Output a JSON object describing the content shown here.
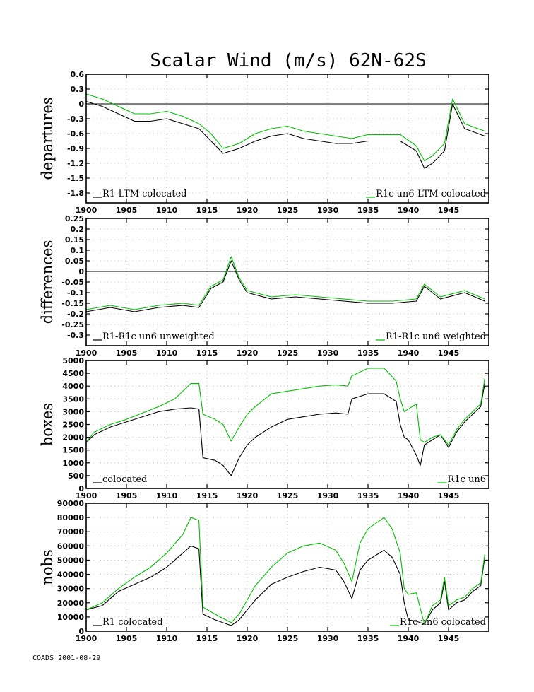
{
  "title": "Scalar Wind (m/s) 62N-62S",
  "footer": "COADS 2001-08-29",
  "colors": {
    "r1": "#000000",
    "r1c": "#00c000"
  },
  "chart_data": [
    {
      "type": "line",
      "ylabel": "departures",
      "ylim": [
        -2.0,
        0.6
      ],
      "yticks": [
        0.6,
        0.3,
        0,
        -0.3,
        -0.6,
        -0.9,
        -1.2,
        -1.5,
        -1.8
      ],
      "ytick_labels": [
        "0.6",
        "0.3",
        "0",
        "-0.3",
        "-0.6",
        "-0.9",
        "-1.2",
        "-1.5",
        "-1.8"
      ],
      "xlim": [
        1900,
        1950
      ],
      "xticks": [
        1900,
        1905,
        1910,
        1915,
        1920,
        1925,
        1930,
        1935,
        1940,
        1945
      ],
      "zero_line": true,
      "legend_left": "R1-LTM colocated",
      "legend_right": "R1c un6-LTM colocated",
      "grid": true,
      "series": [
        {
          "name": "R1-LTM colocated",
          "x": [
            1900,
            1902,
            1904,
            1906,
            1908,
            1910,
            1912,
            1914,
            1915.5,
            1917,
            1919,
            1921,
            1923,
            1925,
            1927,
            1929,
            1931,
            1933,
            1935,
            1937,
            1939,
            1941,
            1942,
            1943,
            1944.5,
            1945.5,
            1947,
            1949.5
          ],
          "y": [
            0.05,
            -0.05,
            -0.2,
            -0.35,
            -0.35,
            -0.3,
            -0.4,
            -0.5,
            -0.75,
            -1.0,
            -0.9,
            -0.75,
            -0.65,
            -0.6,
            -0.7,
            -0.75,
            -0.8,
            -0.8,
            -0.75,
            -0.75,
            -0.75,
            -0.95,
            -1.3,
            -1.2,
            -0.95,
            0.0,
            -0.5,
            -0.65
          ]
        },
        {
          "name": "R1c un6-LTM colocated",
          "x": [
            1900,
            1902,
            1904,
            1906,
            1908,
            1910,
            1912,
            1914,
            1915.5,
            1917,
            1919,
            1921,
            1923,
            1925,
            1927,
            1929,
            1931,
            1933,
            1935,
            1937,
            1939,
            1941,
            1942,
            1943,
            1944.5,
            1945.5,
            1947,
            1949.5
          ],
          "y": [
            0.2,
            0.1,
            -0.05,
            -0.2,
            -0.2,
            -0.15,
            -0.25,
            -0.4,
            -0.6,
            -0.9,
            -0.8,
            -0.6,
            -0.5,
            -0.45,
            -0.55,
            -0.6,
            -0.65,
            -0.7,
            -0.62,
            -0.62,
            -0.62,
            -0.85,
            -1.15,
            -1.05,
            -0.8,
            0.1,
            -0.4,
            -0.55
          ]
        }
      ]
    },
    {
      "type": "line",
      "ylabel": "differences",
      "ylim": [
        -0.35,
        0.25
      ],
      "yticks": [
        0.25,
        0.2,
        0.15,
        0.1,
        0.05,
        0,
        -0.05,
        -0.1,
        -0.15,
        -0.2,
        -0.25,
        -0.3
      ],
      "ytick_labels": [
        "0.25",
        "0.2",
        "0.15",
        "0.1",
        "0.05",
        "0",
        "-0.05",
        "-0.1",
        "-0.15",
        "-0.2",
        "-0.25",
        "-0.3"
      ],
      "xlim": [
        1900,
        1950
      ],
      "xticks": [
        1900,
        1905,
        1910,
        1915,
        1920,
        1925,
        1930,
        1935,
        1940,
        1945
      ],
      "zero_line": true,
      "legend_left": "R1-R1c un6 unweighted",
      "legend_right": "R1-R1c un6 weighted",
      "grid": true,
      "series": [
        {
          "name": "R1-R1c un6 unweighted",
          "x": [
            1900,
            1903,
            1906,
            1909,
            1912,
            1914,
            1915.5,
            1917,
            1918,
            1919,
            1920,
            1923,
            1926,
            1929,
            1932,
            1935,
            1938,
            1941,
            1942,
            1944,
            1947,
            1949.5
          ],
          "y": [
            -0.19,
            -0.17,
            -0.19,
            -0.17,
            -0.16,
            -0.17,
            -0.08,
            -0.05,
            0.05,
            -0.04,
            -0.1,
            -0.13,
            -0.12,
            -0.13,
            -0.14,
            -0.15,
            -0.15,
            -0.14,
            -0.07,
            -0.13,
            -0.1,
            -0.14
          ]
        },
        {
          "name": "R1-R1c un6 weighted",
          "x": [
            1900,
            1903,
            1906,
            1909,
            1912,
            1914,
            1915.5,
            1917,
            1918,
            1919,
            1920,
            1923,
            1926,
            1929,
            1932,
            1935,
            1938,
            1941,
            1942,
            1944,
            1947,
            1949.5
          ],
          "y": [
            -0.18,
            -0.16,
            -0.18,
            -0.16,
            -0.15,
            -0.16,
            -0.07,
            -0.04,
            0.07,
            -0.03,
            -0.09,
            -0.12,
            -0.11,
            -0.12,
            -0.13,
            -0.14,
            -0.14,
            -0.13,
            -0.06,
            -0.12,
            -0.09,
            -0.13
          ]
        }
      ]
    },
    {
      "type": "line",
      "ylabel": "boxes",
      "ylim": [
        0,
        5000
      ],
      "yticks": [
        5000,
        4500,
        4000,
        3500,
        3000,
        2500,
        2000,
        1500,
        1000,
        500,
        0
      ],
      "ytick_labels": [
        "5000",
        "4500",
        "4000",
        "3500",
        "3000",
        "2500",
        "2000",
        "1500",
        "1000",
        "500",
        "0"
      ],
      "xlim": [
        1900,
        1950
      ],
      "xticks": [
        1900,
        1905,
        1910,
        1915,
        1920,
        1925,
        1930,
        1935,
        1940,
        1945
      ],
      "zero_line": false,
      "legend_left": "colocated",
      "legend_right": "R1c un6",
      "grid": true,
      "series": [
        {
          "name": "colocated",
          "x": [
            1900,
            1901,
            1903,
            1905,
            1907,
            1909,
            1911,
            1913,
            1914,
            1914.5,
            1916,
            1917,
            1918,
            1919,
            1920,
            1921,
            1923,
            1925,
            1927,
            1929,
            1931,
            1932.5,
            1933,
            1935,
            1937,
            1938.5,
            1939,
            1939.5,
            1940,
            1941,
            1941.5,
            1942,
            1943,
            1944,
            1945,
            1946,
            1947,
            1948,
            1949,
            1949.5
          ],
          "y": [
            1800,
            2100,
            2400,
            2600,
            2800,
            3000,
            3100,
            3150,
            3100,
            1200,
            1100,
            900,
            500,
            1200,
            1700,
            2000,
            2400,
            2700,
            2800,
            2900,
            2950,
            2900,
            3500,
            3700,
            3700,
            3400,
            2500,
            2000,
            1900,
            1300,
            900,
            1700,
            1900,
            2100,
            1600,
            2200,
            2600,
            2900,
            3200,
            4100
          ]
        },
        {
          "name": "R1c un6",
          "x": [
            1900,
            1901,
            1903,
            1905,
            1907,
            1909,
            1911,
            1913,
            1914,
            1914.5,
            1916,
            1917,
            1918,
            1919,
            1920,
            1921,
            1923,
            1925,
            1927,
            1929,
            1931,
            1932.5,
            1933,
            1935,
            1937,
            1938.5,
            1939,
            1939.5,
            1940,
            1941,
            1941.5,
            1942,
            1943,
            1944,
            1945,
            1946,
            1947,
            1948,
            1949,
            1949.5
          ],
          "y": [
            1800,
            2200,
            2500,
            2700,
            2950,
            3200,
            3500,
            4100,
            4100,
            2900,
            2700,
            2500,
            1850,
            2400,
            2900,
            3200,
            3700,
            3800,
            3900,
            4000,
            4050,
            4000,
            4400,
            4700,
            4700,
            4200,
            3500,
            3000,
            3100,
            3300,
            1900,
            1800,
            2000,
            2100,
            1700,
            2300,
            2700,
            3000,
            3300,
            4300
          ]
        }
      ]
    },
    {
      "type": "line",
      "ylabel": "nobs",
      "ylim": [
        0,
        90000
      ],
      "yticks": [
        90000,
        80000,
        70000,
        60000,
        50000,
        40000,
        30000,
        20000,
        10000,
        0
      ],
      "ytick_labels": [
        "90000",
        "80000",
        "70000",
        "60000",
        "50000",
        "40000",
        "30000",
        "20000",
        "10000",
        "0"
      ],
      "xlim": [
        1900,
        1950
      ],
      "xticks": [
        1900,
        1905,
        1910,
        1915,
        1920,
        1925,
        1930,
        1935,
        1940,
        1945
      ],
      "zero_line": false,
      "legend_left": "R1 colocated",
      "legend_right": "R1c un6 colocated",
      "grid": true,
      "series": [
        {
          "name": "R1 colocated",
          "x": [
            1900,
            1902,
            1904,
            1906,
            1908,
            1910,
            1912,
            1913,
            1914,
            1914.5,
            1916,
            1918,
            1919,
            1921,
            1923,
            1925,
            1927,
            1929,
            1931,
            1932,
            1933,
            1934,
            1935,
            1937,
            1938,
            1939,
            1939.5,
            1940,
            1941,
            1942,
            1943,
            1944,
            1944.5,
            1945,
            1946,
            1947,
            1948,
            1949,
            1949.5
          ],
          "y": [
            15000,
            18000,
            28000,
            33000,
            38000,
            45000,
            55000,
            60000,
            58000,
            12000,
            8000,
            4000,
            8000,
            22000,
            33000,
            38000,
            42000,
            45000,
            43000,
            35000,
            23000,
            43000,
            50000,
            57000,
            52000,
            40000,
            20000,
            8000,
            7000,
            5000,
            15000,
            20000,
            35000,
            15000,
            20000,
            22000,
            28000,
            32000,
            52000
          ]
        },
        {
          "name": "R1c un6 colocated",
          "x": [
            1900,
            1902,
            1904,
            1906,
            1908,
            1910,
            1912,
            1913,
            1914,
            1914.5,
            1916,
            1918,
            1919,
            1921,
            1923,
            1925,
            1927,
            1929,
            1931,
            1932,
            1933,
            1934,
            1935,
            1937,
            1938,
            1939,
            1939.5,
            1940,
            1941,
            1942,
            1943,
            1944,
            1944.5,
            1945,
            1946,
            1947,
            1948,
            1949,
            1949.5
          ],
          "y": [
            15000,
            20000,
            30000,
            38000,
            45000,
            55000,
            68000,
            80000,
            78000,
            17000,
            12000,
            6000,
            12000,
            32000,
            45000,
            55000,
            60000,
            62000,
            57000,
            48000,
            35000,
            62000,
            72000,
            80000,
            72000,
            55000,
            30000,
            26000,
            27000,
            5000,
            18000,
            22000,
            38000,
            18000,
            22000,
            24000,
            30000,
            34000,
            54000
          ]
        }
      ]
    }
  ]
}
